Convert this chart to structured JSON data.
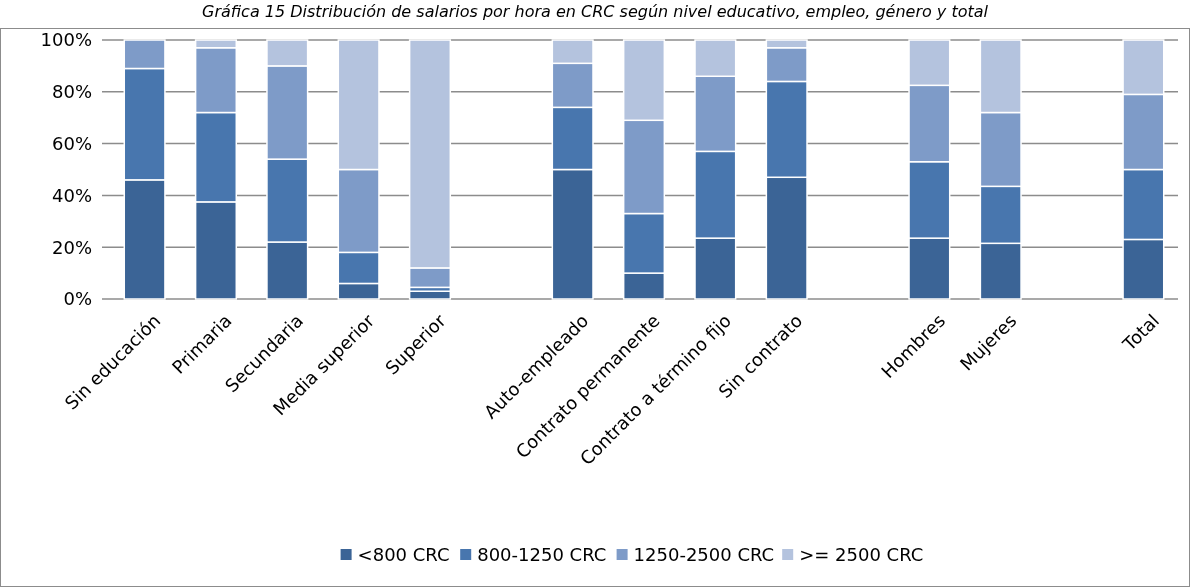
{
  "chart_data": {
    "type": "bar",
    "title": "Gráfica 15 Distribución de salarios por hora en CRC según nivel educativo, empleo, género y total",
    "categories": [
      "Sin educación",
      "Primaria",
      "Secundaria",
      "Media superior",
      "Superior",
      null,
      "Auto-empleado",
      "Contrato permanente",
      "Contrato a término fijo",
      "Sin contrato",
      null,
      "Hombres",
      "Mujeres",
      null,
      "Total"
    ],
    "stacked": true,
    "series": [
      {
        "name": "<800 CRC",
        "color": "#3b6496",
        "values": [
          46,
          37.5,
          22,
          6,
          3,
          null,
          50,
          10,
          23.5,
          47,
          null,
          23.5,
          21.5,
          null,
          23
        ]
      },
      {
        "name": "800-1250 CRC",
        "color": "#4876ae",
        "values": [
          43,
          34.5,
          32,
          12,
          1.5,
          null,
          24,
          23,
          33.5,
          37,
          null,
          29.5,
          22,
          null,
          27
        ]
      },
      {
        "name": "1250-2500 CRC",
        "color": "#7e9bc8",
        "values": [
          11,
          25,
          36,
          32,
          7.5,
          null,
          17,
          36,
          29,
          13,
          null,
          29.5,
          28.5,
          null,
          29
        ]
      },
      {
        "name": ">= 2500 CRC",
        "color": "#b4c3de",
        "values": [
          0,
          3,
          10,
          50,
          88,
          null,
          9,
          31,
          14,
          3,
          null,
          17.5,
          28,
          null,
          21
        ]
      }
    ],
    "ylim": [
      0,
      100
    ],
    "yticks": [
      {
        "value": 0,
        "label": "0%"
      },
      {
        "value": 20,
        "label": "20%"
      },
      {
        "value": 40,
        "label": "40%"
      },
      {
        "value": 60,
        "label": "60%"
      },
      {
        "value": 80,
        "label": "80%"
      },
      {
        "value": 100,
        "label": "100%"
      }
    ],
    "grid": "y",
    "legend": "bottom"
  }
}
